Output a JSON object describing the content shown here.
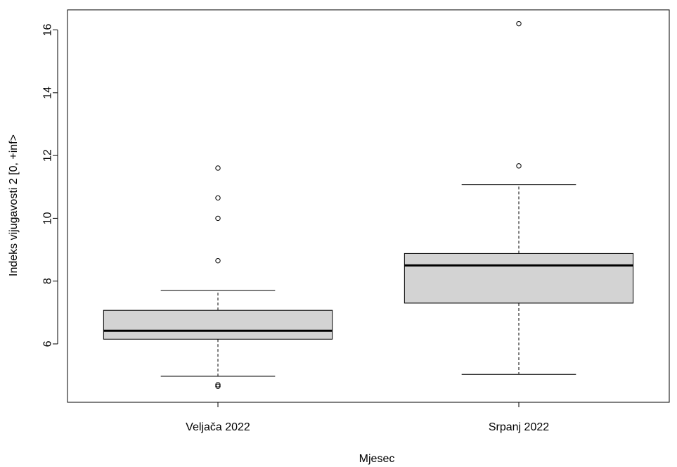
{
  "chart_data": {
    "type": "box",
    "xlabel": "Mjesec",
    "ylabel": "Indeks vijugavosti 2 [0, +inf>",
    "categories": [
      "Veljača 2022",
      "Srpanj 2022"
    ],
    "yticks": [
      6,
      8,
      10,
      12,
      14,
      16
    ],
    "ylim": [
      4.14,
      16.64
    ],
    "grid": false,
    "boxes": [
      {
        "label": "Veljača 2022",
        "whisker_low": 4.97,
        "q1": 6.15,
        "median": 6.42,
        "q3": 7.07,
        "whisker_high": 7.7,
        "outliers": [
          4.65,
          4.7,
          8.65,
          10.0,
          10.65,
          11.6
        ]
      },
      {
        "label": "Srpanj 2022",
        "whisker_low": 5.03,
        "q1": 7.3,
        "median": 8.5,
        "q3": 8.88,
        "whisker_high": 11.07,
        "outliers": [
          11.67,
          16.2
        ]
      }
    ],
    "box_fill": "#d3d3d3",
    "line_color": "#000000"
  }
}
